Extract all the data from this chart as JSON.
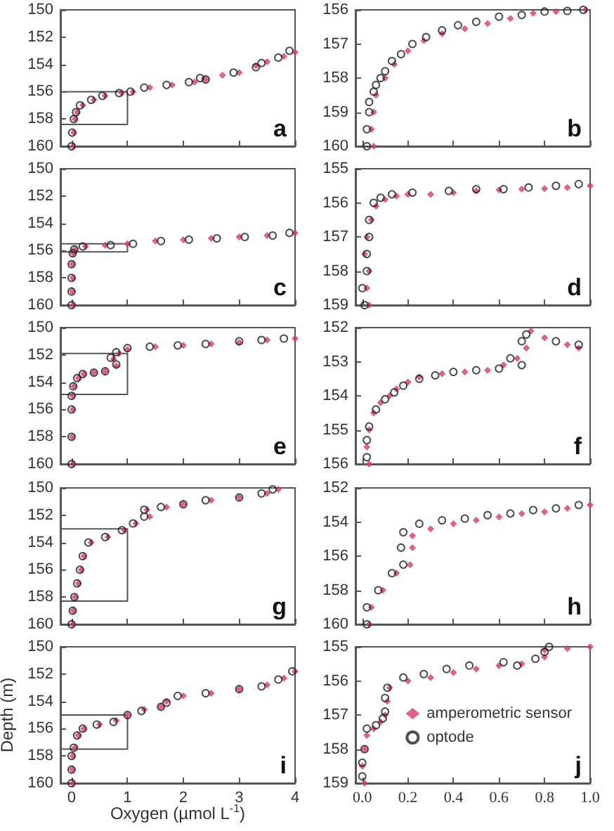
{
  "chart_data": [
    {
      "type": "scatter",
      "annotations": [
        "a"
      ],
      "xlim": [
        -0.2,
        4
      ],
      "xticks": [
        0,
        1,
        2,
        3,
        4
      ],
      "ylim": [
        160,
        150
      ],
      "yticks": [
        150,
        152,
        154,
        156,
        158,
        160
      ],
      "tick_labels": "y",
      "grid": false,
      "legend": false,
      "series": [
        {
          "color": "#d43a6a",
          "marker": "diamond",
          "x": [
            0.03,
            0.04,
            0.06,
            0.1,
            0.2,
            0.4,
            0.6,
            0.9,
            1.1,
            1.4,
            1.8,
            2.2,
            2.4,
            2.7,
            3.0,
            3.3,
            3.5,
            3.8,
            4.0
          ],
          "values": [
            160,
            159,
            158,
            157.5,
            157,
            156.6,
            156.3,
            156.1,
            156,
            155.7,
            155.5,
            155.3,
            155.1,
            154.8,
            154.6,
            154.1,
            153.8,
            153.4,
            153.1
          ]
        },
        {
          "color": "#222222",
          "marker": "circle",
          "x": [
            0.0,
            0.01,
            0.04,
            0.08,
            0.15,
            0.35,
            0.55,
            0.85,
            1.05,
            1.3,
            1.7,
            2.1,
            2.3,
            2.4,
            2.9,
            3.3,
            3.4,
            3.7,
            3.9
          ],
          "values": [
            160,
            159,
            158,
            157.5,
            157,
            156.6,
            156.3,
            156.1,
            156,
            155.7,
            155.5,
            155.3,
            155.0,
            155.1,
            154.6,
            154.2,
            153.9,
            153.5,
            153.0
          ]
        },
        {
          "type": "line",
          "color": "#555555",
          "marker": "none",
          "line_style": "solid",
          "x": [
            -0.2,
            1,
            1,
            -0.2
          ],
          "values": [
            156,
            156,
            158.4,
            158.4
          ]
        }
      ]
    },
    {
      "type": "scatter",
      "annotations": [
        "b"
      ],
      "xlim": [
        -0.03,
        1
      ],
      "xticks": [
        0,
        0.2,
        0.4,
        0.6,
        0.8,
        1
      ],
      "ylim": [
        160,
        156
      ],
      "yticks": [
        156,
        157,
        158,
        159,
        160
      ],
      "tick_labels": "y",
      "grid": false,
      "legend": false,
      "series": [
        {
          "color": "#d43a6a",
          "marker": "diamond",
          "x": [
            0.05,
            0.04,
            0.05,
            0.06,
            0.1,
            0.14,
            0.2,
            0.27,
            0.35,
            0.45,
            0.55,
            0.65,
            0.75,
            0.85,
            0.98
          ],
          "values": [
            160,
            159.5,
            159,
            158.5,
            158,
            157.6,
            157.2,
            156.9,
            156.7,
            156.55,
            156.4,
            156.25,
            156.1,
            156.05,
            156.0
          ]
        },
        {
          "color": "#222222",
          "marker": "circle",
          "x": [
            0.02,
            0.02,
            0.03,
            0.03,
            0.05,
            0.06,
            0.08,
            0.1,
            0.13,
            0.17,
            0.22,
            0.28,
            0.35,
            0.42,
            0.5,
            0.6,
            0.7,
            0.8,
            0.9,
            0.97
          ],
          "values": [
            160,
            159.5,
            159,
            158.7,
            158.4,
            158.2,
            158,
            157.8,
            157.5,
            157.3,
            157,
            156.8,
            156.6,
            156.45,
            156.35,
            156.2,
            156.15,
            156.05,
            156.03,
            156.0
          ]
        }
      ]
    },
    {
      "type": "scatter",
      "annotations": [
        "c"
      ],
      "xlim": [
        -0.2,
        4
      ],
      "xticks": [
        0,
        1,
        2,
        3,
        4
      ],
      "ylim": [
        160,
        150
      ],
      "yticks": [
        150,
        152,
        154,
        156,
        158,
        160
      ],
      "tick_labels": "y",
      "grid": false,
      "legend": false,
      "series": [
        {
          "color": "#d43a6a",
          "marker": "diamond",
          "x": [
            0.02,
            0.01,
            0.02,
            0.01,
            0.03,
            0.06,
            0.25,
            0.6,
            1.0,
            1.5,
            2.0,
            2.5,
            3.0,
            3.5,
            4.0
          ],
          "values": [
            160,
            159,
            158,
            157,
            156.2,
            155.9,
            155.7,
            155.6,
            155.5,
            155.3,
            155.2,
            155.1,
            155.0,
            154.9,
            154.7
          ]
        },
        {
          "color": "#222222",
          "marker": "circle",
          "x": [
            0.0,
            0.0,
            0.0,
            0.0,
            0.02,
            0.05,
            0.2,
            0.7,
            1.1,
            1.6,
            2.1,
            2.6,
            3.1,
            3.6,
            3.9
          ],
          "values": [
            160,
            159,
            158,
            157,
            156.2,
            155.9,
            155.7,
            155.6,
            155.5,
            155.3,
            155.2,
            155.1,
            155.0,
            154.9,
            154.7
          ]
        },
        {
          "type": "line",
          "color": "#555555",
          "marker": "none",
          "line_style": "solid",
          "x": [
            -0.2,
            1,
            1,
            -0.2
          ],
          "values": [
            155.5,
            155.5,
            156.1,
            156.1
          ]
        }
      ]
    },
    {
      "type": "scatter",
      "annotations": [
        "d"
      ],
      "xlim": [
        -0.03,
        1
      ],
      "xticks": [
        0,
        0.2,
        0.4,
        0.6,
        0.8,
        1
      ],
      "ylim": [
        159,
        155
      ],
      "yticks": [
        155,
        156,
        157,
        158,
        159
      ],
      "tick_labels": "y",
      "grid": false,
      "legend": false,
      "series": [
        {
          "color": "#d43a6a",
          "marker": "diamond",
          "x": [
            0.03,
            0.02,
            0.03,
            0.01,
            0.02,
            0.04,
            0.06,
            0.1,
            0.15,
            0.2,
            0.3,
            0.4,
            0.5,
            0.6,
            0.7,
            0.8,
            0.9,
            1.0
          ],
          "values": [
            159,
            158.5,
            158,
            157.5,
            157,
            156.5,
            156.1,
            155.9,
            155.8,
            155.75,
            155.75,
            155.7,
            155.65,
            155.62,
            155.6,
            155.58,
            155.55,
            155.5
          ]
        },
        {
          "color": "#222222",
          "marker": "circle",
          "x": [
            0.01,
            0.0,
            0.02,
            0.02,
            0.03,
            0.03,
            0.05,
            0.08,
            0.13,
            0.22,
            0.38,
            0.5,
            0.62,
            0.73,
            0.85,
            0.95
          ],
          "values": [
            159,
            158.5,
            158,
            157.5,
            157,
            156.5,
            156.0,
            155.85,
            155.75,
            155.7,
            155.65,
            155.6,
            155.6,
            155.55,
            155.5,
            155.45
          ]
        }
      ]
    },
    {
      "type": "scatter",
      "annotations": [
        "e"
      ],
      "xlim": [
        -0.2,
        4
      ],
      "xticks": [
        0,
        1,
        2,
        3,
        4
      ],
      "ylim": [
        160,
        150
      ],
      "yticks": [
        150,
        152,
        154,
        156,
        158,
        160
      ],
      "tick_labels": "y",
      "grid": false,
      "legend": false,
      "series": [
        {
          "color": "#d43a6a",
          "marker": "diamond",
          "x": [
            0.02,
            0.01,
            0.02,
            0.02,
            0.04,
            0.12,
            0.22,
            0.4,
            0.6,
            0.8,
            0.75,
            0.85,
            1.0,
            1.5,
            2.0,
            2.5,
            3.0,
            3.5,
            4.0
          ],
          "values": [
            160,
            158,
            156,
            155,
            154.3,
            153.7,
            153.4,
            153.3,
            153.2,
            152.8,
            152.3,
            151.9,
            151.6,
            151.4,
            151.3,
            151.2,
            151.1,
            150.9,
            150.8
          ]
        },
        {
          "color": "#222222",
          "marker": "circle",
          "x": [
            0.0,
            0.0,
            0.0,
            0.0,
            0.03,
            0.1,
            0.2,
            0.4,
            0.6,
            0.8,
            0.7,
            0.8,
            1.0,
            1.4,
            1.9,
            2.4,
            3.0,
            3.4,
            3.8
          ],
          "values": [
            160,
            158,
            156,
            155,
            154.3,
            153.7,
            153.4,
            153.3,
            153.2,
            152.7,
            152.2,
            151.8,
            151.5,
            151.4,
            151.3,
            151.2,
            151.0,
            150.9,
            150.8
          ]
        },
        {
          "type": "line",
          "color": "#555555",
          "marker": "none",
          "line_style": "solid",
          "x": [
            -0.2,
            1,
            1,
            -0.2
          ],
          "values": [
            151.9,
            151.9,
            154.9,
            154.9
          ]
        }
      ]
    },
    {
      "type": "scatter",
      "annotations": [
        "f"
      ],
      "xlim": [
        -0.03,
        1
      ],
      "xticks": [
        0,
        0.2,
        0.4,
        0.6,
        0.8,
        1
      ],
      "ylim": [
        156,
        152
      ],
      "yticks": [
        152,
        153,
        154,
        155,
        156
      ],
      "tick_labels": "y",
      "grid": false,
      "legend": false,
      "series": [
        {
          "color": "#d43a6a",
          "marker": "diamond",
          "x": [
            0.03,
            0.02,
            0.03,
            0.05,
            0.08,
            0.12,
            0.15,
            0.2,
            0.25,
            0.35,
            0.45,
            0.55,
            0.62,
            0.68,
            0.72,
            0.74,
            0.8,
            0.9,
            0.95
          ],
          "values": [
            156,
            155.5,
            155,
            154.5,
            154.2,
            154,
            153.8,
            153.6,
            153.45,
            153.35,
            153.3,
            153.25,
            153.1,
            152.9,
            152.6,
            152.1,
            152.3,
            152.5,
            152.6
          ]
        },
        {
          "color": "#222222",
          "marker": "circle",
          "x": [
            0.02,
            0.02,
            0.03,
            0.06,
            0.1,
            0.14,
            0.18,
            0.25,
            0.32,
            0.4,
            0.5,
            0.6,
            0.65,
            0.7,
            0.7,
            0.72,
            0.85,
            0.95
          ],
          "values": [
            155.8,
            155.3,
            154.9,
            154.4,
            154.1,
            153.9,
            153.7,
            153.5,
            153.4,
            153.3,
            153.25,
            153.2,
            152.9,
            153.1,
            152.4,
            152.2,
            152.4,
            152.5
          ]
        }
      ]
    },
    {
      "type": "scatter",
      "annotations": [
        "g"
      ],
      "xlim": [
        -0.2,
        4
      ],
      "xticks": [
        0,
        1,
        2,
        3,
        4
      ],
      "ylim": [
        160,
        150
      ],
      "yticks": [
        150,
        152,
        154,
        156,
        158,
        160
      ],
      "tick_labels": "y",
      "grid": false,
      "legend": false,
      "series": [
        {
          "color": "#d43a6a",
          "marker": "diamond",
          "x": [
            0.02,
            0.03,
            0.06,
            0.12,
            0.17,
            0.22,
            0.35,
            0.65,
            0.95,
            1.15,
            1.4,
            1.35,
            1.7,
            2.0,
            2.5,
            3.0,
            3.5,
            3.7
          ],
          "values": [
            160,
            159,
            158,
            157,
            156,
            155,
            154,
            153.6,
            153.1,
            152.6,
            152.1,
            151.6,
            151.4,
            151.2,
            150.9,
            150.7,
            150.4,
            150.1
          ]
        },
        {
          "color": "#222222",
          "marker": "circle",
          "x": [
            0.0,
            0.02,
            0.05,
            0.1,
            0.15,
            0.2,
            0.3,
            0.6,
            0.9,
            1.1,
            1.3,
            1.3,
            1.6,
            2.0,
            2.4,
            3.0,
            3.4,
            3.6
          ],
          "values": [
            160,
            159,
            158,
            157,
            156,
            155,
            154,
            153.6,
            153.1,
            152.6,
            152.1,
            151.6,
            151.4,
            151.2,
            150.9,
            150.7,
            150.4,
            150.1
          ]
        },
        {
          "type": "line",
          "color": "#555555",
          "marker": "none",
          "line_style": "solid",
          "x": [
            -0.2,
            1,
            1,
            -0.2
          ],
          "values": [
            153,
            153,
            158.3,
            158.3
          ]
        }
      ]
    },
    {
      "type": "scatter",
      "annotations": [
        "h"
      ],
      "xlim": [
        -0.03,
        1
      ],
      "xticks": [
        0,
        0.2,
        0.4,
        0.6,
        0.8,
        1
      ],
      "ylim": [
        160,
        152
      ],
      "yticks": [
        152,
        154,
        156,
        158,
        160
      ],
      "tick_labels": "y",
      "grid": false,
      "legend": false,
      "series": [
        {
          "color": "#d43a6a",
          "marker": "diamond",
          "x": [
            0.03,
            0.04,
            0.09,
            0.15,
            0.21,
            0.22,
            0.22,
            0.3,
            0.4,
            0.5,
            0.6,
            0.7,
            0.8,
            0.9,
            1.0
          ],
          "values": [
            160,
            159,
            158,
            157,
            156.5,
            155.5,
            154.8,
            154.4,
            154.1,
            153.9,
            153.7,
            153.5,
            153.4,
            153.2,
            153.0
          ]
        },
        {
          "color": "#222222",
          "marker": "circle",
          "x": [
            0.02,
            0.02,
            0.07,
            0.13,
            0.18,
            0.17,
            0.18,
            0.25,
            0.35,
            0.45,
            0.55,
            0.65,
            0.75,
            0.85,
            0.95
          ],
          "values": [
            160,
            159,
            158,
            157,
            156.5,
            155.5,
            154.6,
            154.1,
            153.9,
            153.8,
            153.6,
            153.5,
            153.3,
            153.2,
            153.0
          ]
        }
      ]
    },
    {
      "type": "scatter",
      "annotations": [
        "i"
      ],
      "xlabel": "Oxygen (µmol L$^{-1}$)",
      "ylabel": "Depth (m)",
      "xlim": [
        -0.2,
        4
      ],
      "xticks": [
        0,
        1,
        2,
        3,
        4
      ],
      "ylim": [
        160,
        150
      ],
      "yticks": [
        150,
        152,
        154,
        156,
        158,
        160
      ],
      "grid": false,
      "legend": false,
      "series": [
        {
          "color": "#d43a6a",
          "marker": "diamond",
          "x": [
            0.02,
            0.01,
            0.02,
            0.06,
            0.12,
            0.22,
            0.5,
            0.8,
            1.0,
            1.3,
            1.6,
            1.7,
            2.0,
            2.5,
            3.0,
            3.5,
            3.8,
            4.0
          ],
          "values": [
            160,
            159,
            158,
            157.4,
            156.5,
            156,
            155.7,
            155.4,
            155,
            154.6,
            154.4,
            154,
            153.6,
            153.4,
            153.1,
            152.8,
            152.3,
            151.8
          ]
        },
        {
          "color": "#222222",
          "marker": "circle",
          "x": [
            0.0,
            0.0,
            0.0,
            0.04,
            0.1,
            0.2,
            0.45,
            0.75,
            1.0,
            1.25,
            1.6,
            1.7,
            1.9,
            2.4,
            3.0,
            3.4,
            3.7,
            3.95
          ],
          "values": [
            160,
            159,
            158,
            157.4,
            156.5,
            156,
            155.7,
            155.5,
            155,
            154.7,
            154.4,
            154.1,
            153.6,
            153.4,
            153.1,
            152.9,
            152.4,
            151.8
          ]
        },
        {
          "type": "line",
          "color": "#555555",
          "marker": "none",
          "line_style": "solid",
          "x": [
            -0.2,
            1,
            1,
            -0.2
          ],
          "values": [
            155,
            155,
            157.5,
            157.5
          ]
        }
      ]
    },
    {
      "type": "scatter",
      "annotations": [
        "j"
      ],
      "xlim": [
        -0.03,
        1
      ],
      "xticks": [
        {
          "value": 0,
          "label": "0.0"
        },
        {
          "value": 0.2,
          "label": "0.2"
        },
        {
          "value": 0.4,
          "label": "0.4"
        },
        {
          "value": 0.6,
          "label": "0.6"
        },
        {
          "value": 0.8,
          "label": "0.8"
        },
        {
          "value": 1,
          "label": "1.0"
        }
      ],
      "ylim": [
        159,
        155
      ],
      "yticks": [
        155,
        156,
        157,
        158,
        159
      ],
      "grid": false,
      "legend": "bottom right",
      "series": [
        {
          "name": "amperometric sensor",
          "color": "#d43a6a",
          "marker": "diamond",
          "x": [
            0.01,
            0.0,
            0.01,
            0.02,
            0.05,
            0.08,
            0.1,
            0.11,
            0.12,
            0.2,
            0.3,
            0.4,
            0.5,
            0.6,
            0.7,
            0.8,
            0.8,
            0.9,
            1.0
          ],
          "values": [
            159,
            158.5,
            158,
            157.6,
            157.4,
            157.2,
            157,
            156.6,
            156.2,
            156,
            155.9,
            155.75,
            155.65,
            155.55,
            155.5,
            155.3,
            155.1,
            155.05,
            155.0
          ]
        },
        {
          "name": "optode",
          "color": "#222222",
          "marker": "circle",
          "x": [
            0.0,
            0.0,
            0.01,
            0.02,
            0.06,
            0.09,
            0.1,
            0.1,
            0.11,
            0.18,
            0.27,
            0.37,
            0.47,
            0.62,
            0.68,
            0.76,
            0.8,
            0.82
          ],
          "values": [
            158.8,
            158.4,
            158.0,
            157.4,
            157.3,
            157.1,
            156.9,
            156.5,
            156.2,
            155.9,
            155.8,
            155.65,
            155.55,
            155.45,
            155.55,
            155.35,
            155.15,
            155.0
          ]
        }
      ]
    }
  ]
}
